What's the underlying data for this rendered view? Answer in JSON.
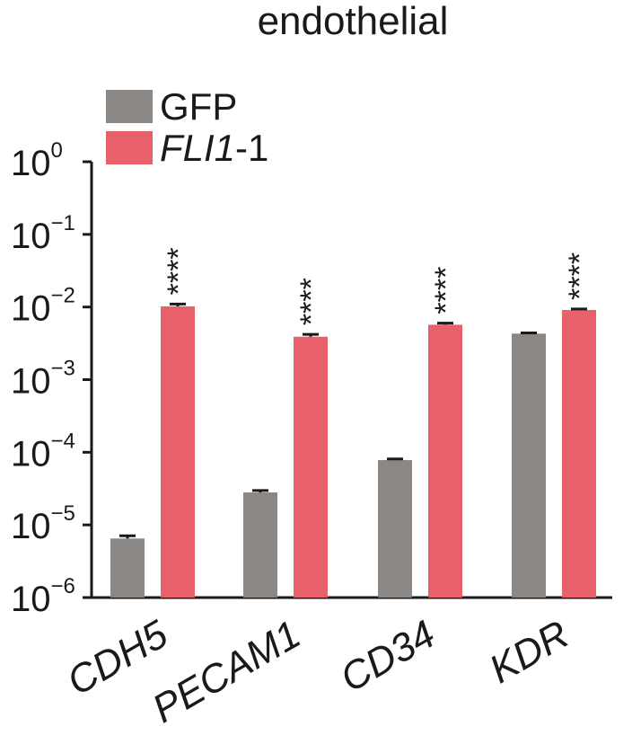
{
  "chart_data": {
    "type": "bar",
    "title": "endothelial",
    "yscale": "log",
    "ylim": [
      1e-06,
      1
    ],
    "y_tick_labels": [
      {
        "base": "10",
        "exp": "0"
      },
      {
        "base": "10",
        "exp": "−1"
      },
      {
        "base": "10",
        "exp": "−2"
      },
      {
        "base": "10",
        "exp": "−3"
      },
      {
        "base": "10",
        "exp": "−4"
      },
      {
        "base": "10",
        "exp": "−5"
      },
      {
        "base": "10",
        "exp": "−6"
      }
    ],
    "categories": [
      "CDH5",
      "PECAM1",
      "CD34",
      "KDR"
    ],
    "series": [
      {
        "name": "GFP",
        "color": "#8a8785",
        "values": [
          6.5e-06,
          2.8e-05,
          7.8e-05,
          0.0043
        ],
        "error": [
          6e-07,
          1.8e-06,
          3e-06,
          0.0001
        ]
      },
      {
        "name": "FLI1-1",
        "color": "#e8606a",
        "values": [
          0.0102,
          0.0039,
          0.0057,
          0.0091
        ],
        "error": [
          0.0008,
          0.0003,
          0.0003,
          0.0003
        ]
      }
    ],
    "legend": {
      "position": "top-left",
      "items": [
        {
          "parts": [
            {
              "text": "GFP",
              "italic": false
            }
          ],
          "color": "#8a8785"
        },
        {
          "parts": [
            {
              "text": "FLI1",
              "italic": true
            },
            {
              "text": "-1",
              "italic": false
            }
          ],
          "color": "#e8606a"
        }
      ]
    },
    "significance": [
      "****",
      "****",
      "****",
      "****"
    ],
    "grid": false
  }
}
